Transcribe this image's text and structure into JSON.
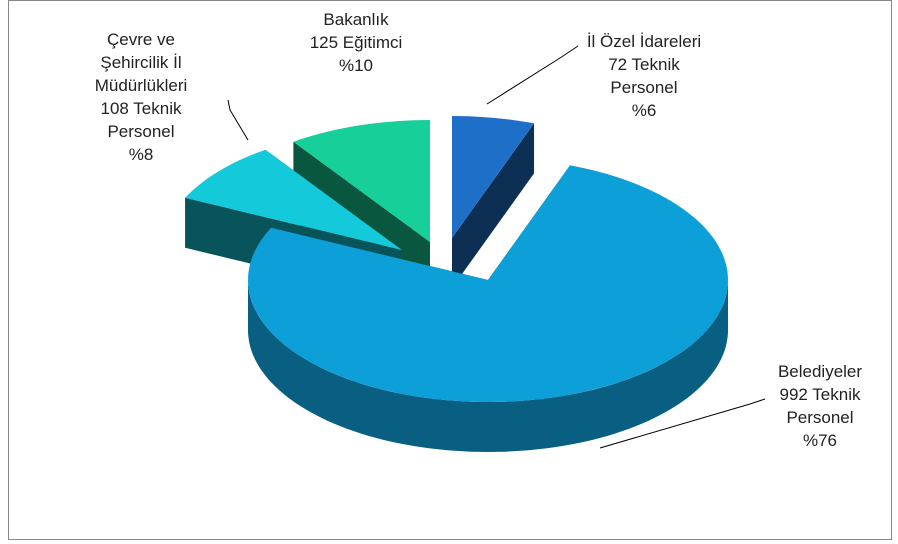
{
  "chart_data": {
    "type": "pie3d",
    "categories": [
      "İl Özel İdareleri",
      "Belediyeler",
      "Çevre ve Şehircilik İl Müdürlükleri",
      "Bakanlık"
    ],
    "values": [
      72,
      992,
      108,
      125
    ],
    "value_labels": [
      "72 Teknik Personel",
      "992 Teknik Personel",
      "108 Teknik Personel",
      "125 Eğitimci"
    ],
    "percentages": [
      6,
      76,
      8,
      10
    ],
    "percentage_labels": [
      "%6",
      "%76",
      "%8",
      "%10"
    ],
    "colors": [
      "#1e6fc8",
      "#0d9fd8",
      "#14c9d9",
      "#17cf98"
    ]
  }
}
